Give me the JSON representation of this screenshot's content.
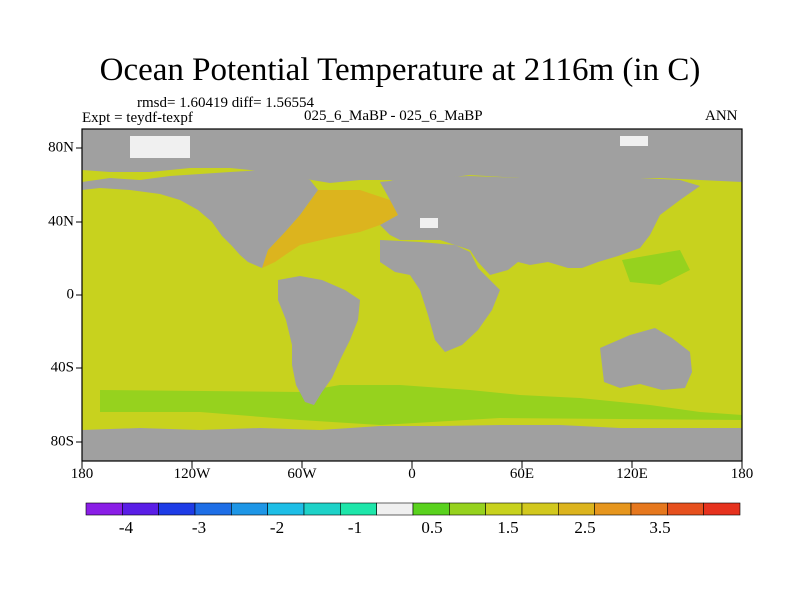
{
  "title": "Ocean Potential Temperature at 2116m (in C)",
  "stats": "rmsd= 1.60419 diff= 1.56554",
  "expt": "Expt = teydf-texpf",
  "case": "025_6_MaBP - 025_6_MaBP",
  "season": "ANN",
  "x_ticks": [
    "180",
    "120W",
    "60W",
    "0",
    "60E",
    "120E",
    "180"
  ],
  "y_ticks": [
    "80N",
    "40N",
    "0",
    "40S",
    "80S"
  ],
  "colorbar": {
    "colors": [
      "#8a1ee6",
      "#5a1ee6",
      "#1e3ce6",
      "#1e6ee6",
      "#1e96e6",
      "#1ebee6",
      "#1ed2c8",
      "#1ee6aa",
      "#f0f0f0",
      "#5ad21e",
      "#96d21e",
      "#c8d21e",
      "#d2c81e",
      "#dcb41e",
      "#e6961e",
      "#e6781e",
      "#e6501e",
      "#e6321e"
    ],
    "labels": [
      "-4",
      "-3",
      "-2",
      "-1",
      "0.5",
      "1.5",
      "2.5",
      "3.5"
    ]
  },
  "colors": {
    "land": "#a0a0a0",
    "ocean_main": "#c8d21e",
    "ocean_cold": "#96d21e",
    "ocean_warm": "#dcb41e",
    "ice_white": "#f0f0f0"
  }
}
